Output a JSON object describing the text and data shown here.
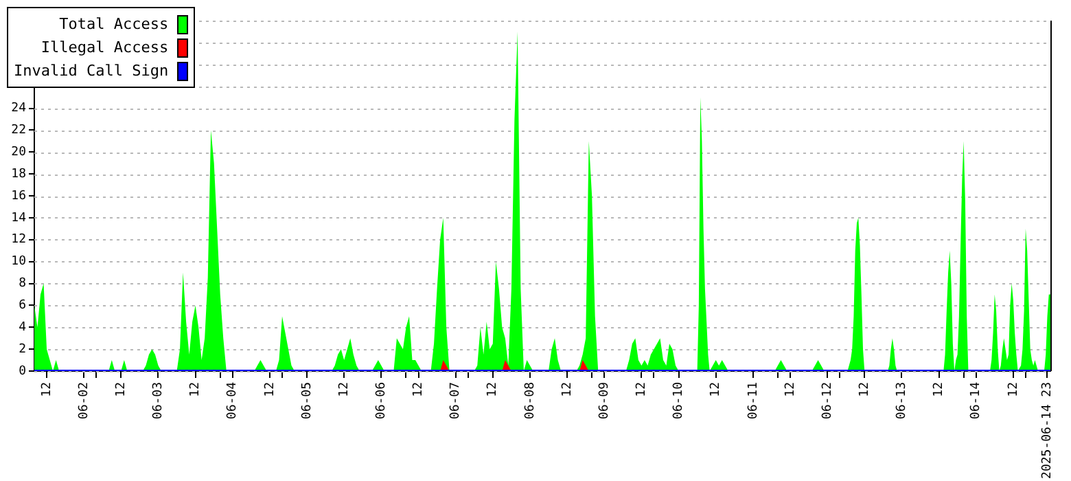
{
  "chart_data": {
    "type": "area",
    "xlim": [
      "2025-06-01T08:00",
      "2025-06-15T00:00"
    ],
    "xticks": [
      {
        "value": "2025-06-01T12:00",
        "label": "12"
      },
      {
        "value": "2025-06-02T00:00",
        "label": "06-02"
      },
      {
        "value": "2025-06-02T04:00",
        "label": null
      },
      {
        "value": "2025-06-02T12:00",
        "label": "12"
      },
      {
        "value": "2025-06-03T00:00",
        "label": "06-03"
      },
      {
        "value": "2025-06-03T12:00",
        "label": "12"
      },
      {
        "value": "2025-06-03T20:00",
        "label": null
      },
      {
        "value": "2025-06-04T00:00",
        "label": "06-04"
      },
      {
        "value": "2025-06-04T12:00",
        "label": "12"
      },
      {
        "value": "2025-06-04T16:00",
        "label": null
      },
      {
        "value": "2025-06-05T00:00",
        "label": "06-05"
      },
      {
        "value": "2025-06-05T12:00",
        "label": "12"
      },
      {
        "value": "2025-06-06T00:00",
        "label": "06-06"
      },
      {
        "value": "2025-06-06T08:00",
        "label": null
      },
      {
        "value": "2025-06-06T12:00",
        "label": "12"
      },
      {
        "value": "2025-06-07T00:00",
        "label": "06-07"
      },
      {
        "value": "2025-06-07T04:00",
        "label": null
      },
      {
        "value": "2025-06-07T12:00",
        "label": "12"
      },
      {
        "value": "2025-06-08T00:00",
        "label": "06-08"
      },
      {
        "value": "2025-06-08T12:00",
        "label": "12"
      },
      {
        "value": "2025-06-08T20:00",
        "label": null
      },
      {
        "value": "2025-06-09T00:00",
        "label": "06-09"
      },
      {
        "value": "2025-06-09T12:00",
        "label": "12"
      },
      {
        "value": "2025-06-09T16:00",
        "label": null
      },
      {
        "value": "2025-06-10T00:00",
        "label": "06-10"
      },
      {
        "value": "2025-06-10T12:00",
        "label": "12"
      },
      {
        "value": "2025-06-11T00:00",
        "label": "06-11"
      },
      {
        "value": "2025-06-11T08:00",
        "label": null
      },
      {
        "value": "2025-06-11T12:00",
        "label": "12"
      },
      {
        "value": "2025-06-12T00:00",
        "label": "06-12"
      },
      {
        "value": "2025-06-12T04:00",
        "label": null
      },
      {
        "value": "2025-06-12T12:00",
        "label": "12"
      },
      {
        "value": "2025-06-13T00:00",
        "label": "06-13"
      },
      {
        "value": "2025-06-13T12:00",
        "label": "12"
      },
      {
        "value": "2025-06-13T20:00",
        "label": null
      },
      {
        "value": "2025-06-14T00:00",
        "label": "06-14"
      },
      {
        "value": "2025-06-14T12:00",
        "label": "12"
      },
      {
        "value": "2025-06-14T16:00",
        "label": null
      },
      {
        "value": "2025-06-14T23:00",
        "label": "2025-06-14 23"
      }
    ],
    "ylim": [
      0,
      32
    ],
    "yticks": [
      0,
      2,
      4,
      6,
      8,
      10,
      12,
      14,
      16,
      18,
      20,
      22,
      24,
      {
        "value": 26,
        "label": null
      },
      {
        "value": 28,
        "label": null
      },
      {
        "value": 30,
        "label": null
      },
      {
        "value": 32,
        "label": null
      }
    ],
    "grid": "y",
    "legend": "top left",
    "series": [
      {
        "name": "Total Access",
        "color": "#00ff00",
        "x": [
          "2025-06-01T08:00",
          "2025-06-01T09:00",
          "2025-06-01T10:00",
          "2025-06-01T11:00",
          "2025-06-01T12:00",
          "2025-06-01T13:00",
          "2025-06-01T14:00",
          "2025-06-01T15:00",
          "2025-06-01T16:00",
          "2025-06-02T08:00",
          "2025-06-02T09:00",
          "2025-06-02T10:00",
          "2025-06-02T12:00",
          "2025-06-02T13:00",
          "2025-06-02T14:00",
          "2025-06-02T19:00",
          "2025-06-02T20:00",
          "2025-06-02T21:00",
          "2025-06-02T22:00",
          "2025-06-02T23:00",
          "2025-06-03T00:00",
          "2025-06-03T01:00",
          "2025-06-03T06:00",
          "2025-06-03T07:00",
          "2025-06-03T08:00",
          "2025-06-03T09:00",
          "2025-06-03T10:00",
          "2025-06-03T11:00",
          "2025-06-03T12:00",
          "2025-06-03T13:00",
          "2025-06-03T14:00",
          "2025-06-03T15:00",
          "2025-06-03T16:00",
          "2025-06-03T17:00",
          "2025-06-03T18:00",
          "2025-06-03T19:00",
          "2025-06-03T20:00",
          "2025-06-03T21:00",
          "2025-06-03T22:00",
          "2025-06-04T07:00",
          "2025-06-04T08:00",
          "2025-06-04T09:00",
          "2025-06-04T10:00",
          "2025-06-04T11:00",
          "2025-06-04T14:00",
          "2025-06-04T15:00",
          "2025-06-04T16:00",
          "2025-06-04T17:00",
          "2025-06-04T18:00",
          "2025-06-04T19:00",
          "2025-06-04T20:00",
          "2025-06-05T08:00",
          "2025-06-05T09:00",
          "2025-06-05T10:00",
          "2025-06-05T11:00",
          "2025-06-05T12:00",
          "2025-06-05T13:00",
          "2025-06-05T14:00",
          "2025-06-05T15:00",
          "2025-06-05T16:00",
          "2025-06-05T17:00",
          "2025-06-05T21:00",
          "2025-06-05T22:00",
          "2025-06-05T23:00",
          "2025-06-06T00:00",
          "2025-06-06T01:00",
          "2025-06-06T04:00",
          "2025-06-06T05:00",
          "2025-06-06T06:00",
          "2025-06-06T07:00",
          "2025-06-06T08:00",
          "2025-06-06T09:00",
          "2025-06-06T10:00",
          "2025-06-06T11:00",
          "2025-06-06T12:00",
          "2025-06-06T13:00",
          "2025-06-06T16:00",
          "2025-06-06T17:00",
          "2025-06-06T18:00",
          "2025-06-06T19:00",
          "2025-06-06T20:00",
          "2025-06-06T21:00",
          "2025-06-06T22:00",
          "2025-06-07T06:00",
          "2025-06-07T07:00",
          "2025-06-07T08:00",
          "2025-06-07T09:00",
          "2025-06-07T10:00",
          "2025-06-07T11:00",
          "2025-06-07T12:00",
          "2025-06-07T13:00",
          "2025-06-07T14:00",
          "2025-06-07T15:00",
          "2025-06-07T16:00",
          "2025-06-07T17:00",
          "2025-06-07T18:00",
          "2025-06-07T19:00",
          "2025-06-07T20:00",
          "2025-06-07T21:00",
          "2025-06-07T22:00",
          "2025-06-07T23:00",
          "2025-06-08T00:00",
          "2025-06-08T01:00",
          "2025-06-08T06:00",
          "2025-06-08T07:00",
          "2025-06-08T08:00",
          "2025-06-08T09:00",
          "2025-06-08T10:00",
          "2025-06-08T15:00",
          "2025-06-08T16:00",
          "2025-06-08T17:00",
          "2025-06-08T18:00",
          "2025-06-08T19:00",
          "2025-06-08T20:00",
          "2025-06-08T21:00",
          "2025-06-08T22:00",
          "2025-06-09T07:00",
          "2025-06-09T08:00",
          "2025-06-09T09:00",
          "2025-06-09T10:00",
          "2025-06-09T11:00",
          "2025-06-09T12:00",
          "2025-06-09T13:00",
          "2025-06-09T14:00",
          "2025-06-09T15:00",
          "2025-06-09T16:00",
          "2025-06-09T17:00",
          "2025-06-09T18:00",
          "2025-06-09T19:00",
          "2025-06-09T20:00",
          "2025-06-09T21:00",
          "2025-06-09T22:00",
          "2025-06-09T23:00",
          "2025-06-10T00:00",
          "2025-06-10T06:00",
          "2025-06-10T06:30",
          "2025-06-10T07:00",
          "2025-06-10T07:30",
          "2025-06-10T08:00",
          "2025-06-10T08:30",
          "2025-06-10T09:00",
          "2025-06-10T09:30",
          "2025-06-10T10:00",
          "2025-06-10T11:00",
          "2025-06-10T12:00",
          "2025-06-10T13:00",
          "2025-06-10T14:00",
          "2025-06-10T15:00",
          "2025-06-10T16:00",
          "2025-06-11T07:00",
          "2025-06-11T08:00",
          "2025-06-11T09:00",
          "2025-06-11T10:00",
          "2025-06-11T11:00",
          "2025-06-11T19:00",
          "2025-06-11T20:00",
          "2025-06-11T21:00",
          "2025-06-11T22:00",
          "2025-06-11T23:00",
          "2025-06-12T06:30",
          "2025-06-12T07:00",
          "2025-06-12T07:30",
          "2025-06-12T08:00",
          "2025-06-12T08:30",
          "2025-06-12T09:00",
          "2025-06-12T09:30",
          "2025-06-12T10:00",
          "2025-06-12T10:30",
          "2025-06-12T11:00",
          "2025-06-12T11:30",
          "2025-06-12T12:00",
          "2025-06-12T19:30",
          "2025-06-12T20:00",
          "2025-06-12T20:30",
          "2025-06-12T21:00",
          "2025-06-12T21:30",
          "2025-06-12T22:00",
          "2025-06-12T22:30",
          "2025-06-13T13:30",
          "2025-06-13T14:00",
          "2025-06-13T14:30",
          "2025-06-13T15:00",
          "2025-06-13T15:30",
          "2025-06-13T16:00",
          "2025-06-13T16:30",
          "2025-06-13T17:00",
          "2025-06-13T17:30",
          "2025-06-13T18:00",
          "2025-06-13T18:30",
          "2025-06-13T19:00",
          "2025-06-13T19:30",
          "2025-06-13T20:00",
          "2025-06-13T20:30",
          "2025-06-13T21:00",
          "2025-06-13T21:30",
          "2025-06-14T04:30",
          "2025-06-14T05:00",
          "2025-06-14T05:30",
          "2025-06-14T06:00",
          "2025-06-14T06:30",
          "2025-06-14T07:00",
          "2025-06-14T07:30",
          "2025-06-14T08:00",
          "2025-06-14T08:30",
          "2025-06-14T09:00",
          "2025-06-14T09:30",
          "2025-06-14T10:00",
          "2025-06-14T10:30",
          "2025-06-14T11:00",
          "2025-06-14T11:30",
          "2025-06-14T12:00",
          "2025-06-14T12:30",
          "2025-06-14T13:00",
          "2025-06-14T13:30",
          "2025-06-14T14:30",
          "2025-06-14T15:00",
          "2025-06-14T15:30",
          "2025-06-14T16:00",
          "2025-06-14T16:30",
          "2025-06-14T17:00",
          "2025-06-14T17:30",
          "2025-06-14T18:00",
          "2025-06-14T18:30",
          "2025-06-14T19:00",
          "2025-06-14T19:30",
          "2025-06-14T20:00",
          "2025-06-14T22:00",
          "2025-06-14T22:30",
          "2025-06-14T23:00",
          "2025-06-14T23:30",
          "2025-06-15T00:00"
        ],
        "values": [
          6,
          4,
          7,
          8,
          2,
          1,
          0,
          1,
          0,
          0,
          1,
          0,
          0,
          1,
          0,
          0,
          0.5,
          1.5,
          2,
          1.5,
          0.5,
          0,
          0,
          2,
          9,
          4.5,
          1.5,
          4.5,
          6,
          4,
          1,
          3,
          8.5,
          22,
          19,
          13,
          7,
          3,
          0,
          0,
          0.5,
          1,
          0.5,
          0,
          0,
          1,
          5,
          3.5,
          2,
          0.5,
          0,
          0,
          0.5,
          1.5,
          2,
          1,
          2,
          3,
          1.5,
          0.5,
          0,
          0,
          0.5,
          1,
          0.5,
          0,
          0,
          3,
          2.5,
          2,
          4,
          5,
          1,
          1,
          0.5,
          0,
          0,
          2.5,
          7.5,
          12,
          14,
          4,
          0,
          0,
          0.5,
          4,
          1.5,
          4.5,
          2,
          2.5,
          10,
          7.5,
          4,
          3,
          0.5,
          7.5,
          23,
          31,
          7.5,
          0,
          1,
          0.5,
          0,
          0,
          2,
          3,
          1,
          0,
          0,
          0.5,
          1.5,
          3,
          21,
          16,
          5,
          0,
          0,
          1,
          2.5,
          3,
          1,
          0.5,
          1,
          0.5,
          1.5,
          2,
          2.5,
          3,
          1,
          0.5,
          2.5,
          2,
          0.5,
          0,
          0,
          6,
          25,
          21,
          13,
          7.5,
          4.5,
          1.5,
          0,
          0.5,
          1,
          0.5,
          1,
          0.5,
          0,
          0,
          0.5,
          1,
          0.5,
          0,
          0,
          0.5,
          1,
          0.5,
          0,
          0,
          0.5,
          1,
          2,
          5,
          11,
          13.5,
          14,
          11.5,
          7,
          2,
          0,
          0,
          0.5,
          2,
          3,
          2,
          0.5,
          0,
          0,
          1.5,
          5.5,
          9,
          11,
          8,
          2.5,
          0,
          1,
          1.5,
          5,
          11.5,
          17.5,
          21,
          15.5,
          5,
          0,
          0,
          1,
          3.5,
          7,
          5.5,
          2,
          0,
          0.5,
          2,
          3,
          2,
          1,
          1.5,
          6,
          8,
          6.5,
          3.5,
          1.5,
          0,
          0.5,
          2,
          5.5,
          13,
          11,
          6.5,
          2,
          1,
          0.5,
          1,
          0.5,
          0,
          0,
          1.5,
          5,
          7,
          7
        ]
      },
      {
        "name": "Illegal Access",
        "color": "#ff0000",
        "x": [
          "2025-06-06T19:00",
          "2025-06-06T20:00",
          "2025-06-06T21:00",
          "2025-06-06T22:00",
          "2025-06-07T15:00",
          "2025-06-07T16:00",
          "2025-06-07T17:00",
          "2025-06-07T18:00",
          "2025-06-08T16:00",
          "2025-06-08T17:00",
          "2025-06-08T18:00",
          "2025-06-08T19:00"
        ],
        "values": [
          0,
          1,
          0.5,
          0,
          0,
          1,
          0.5,
          0,
          0,
          1,
          0.5,
          0
        ]
      },
      {
        "name": "Invalid Call Sign",
        "color": "#0000ff",
        "type": "line",
        "x": [
          "2025-06-01T08:00",
          "2025-06-15T00:00"
        ],
        "values": [
          0,
          0
        ]
      }
    ]
  }
}
